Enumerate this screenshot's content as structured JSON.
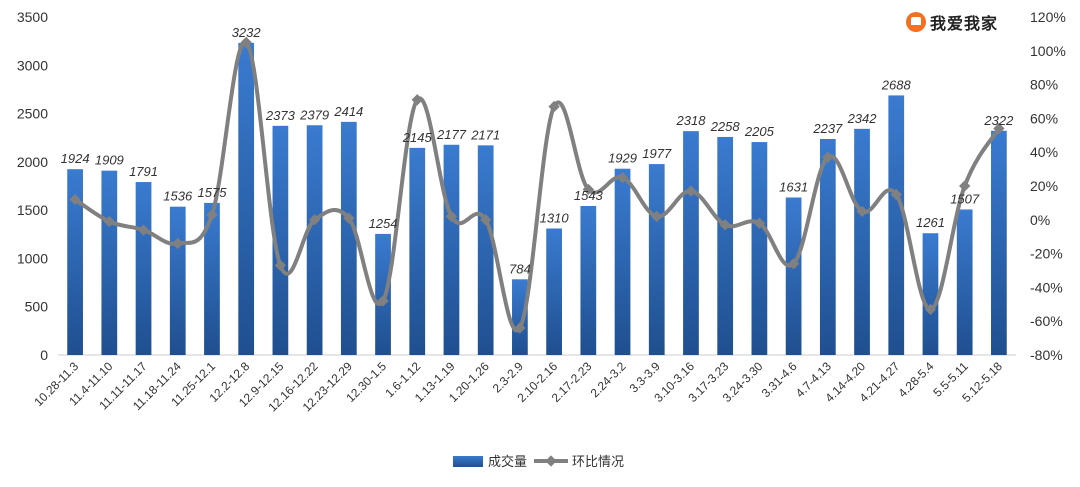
{
  "brand": {
    "name": "我爱我家",
    "icon": "house-logo-icon",
    "color": "#f36f21"
  },
  "chart_data": {
    "type": "bar",
    "categories": [
      "10.28-11.3",
      "11.4-11.10",
      "11.11-11.17",
      "11.18-11.24",
      "11.25-12.1",
      "12.2-12.8",
      "12.9-12.15",
      "12.16-12.22",
      "12.23-12.29",
      "12.30-1.5",
      "1.6-1.12",
      "1.13-1.19",
      "1.20-1.26",
      "2.3-2.9",
      "2.10-2.16",
      "2.17-2.23",
      "2.24-3.2",
      "3.3-3.9",
      "3.10-3.16",
      "3.17-3.23",
      "3.24-3.30",
      "3.31-4.6",
      "4.7-4.13",
      "4.14-4.20",
      "4.21-4.27",
      "4.28-5.4",
      "5.5-5.11",
      "5.12-5.18"
    ],
    "series": [
      {
        "name": "成交量",
        "type": "bar",
        "axis": "left",
        "color": "#2e6bb5",
        "values": [
          1924,
          1909,
          1791,
          1536,
          1575,
          3232,
          2373,
          2379,
          2414,
          1254,
          2145,
          2177,
          2171,
          784,
          1310,
          1543,
          1929,
          1977,
          2318,
          2258,
          2205,
          1631,
          2237,
          2342,
          2688,
          1261,
          1507,
          2322
        ]
      },
      {
        "name": "环比情况",
        "type": "line",
        "axis": "right",
        "color": "#808080",
        "values": [
          12,
          -1,
          -6,
          -14,
          3,
          105,
          -27,
          0,
          1,
          -48,
          71,
          2,
          0,
          -64,
          67,
          18,
          25,
          2,
          17,
          -3,
          -2,
          -26,
          37,
          5,
          15,
          -53,
          20,
          54
        ]
      }
    ],
    "left_axis": {
      "min": 0,
      "max": 3500,
      "step": 500,
      "ticks": [
        "0",
        "500",
        "1000",
        "1500",
        "2000",
        "2500",
        "3000",
        "3500"
      ]
    },
    "right_axis": {
      "min": -80,
      "max": 120,
      "step": 20,
      "ticks": [
        "-80%",
        "-60%",
        "-40%",
        "-20%",
        "0%",
        "20%",
        "40%",
        "60%",
        "80%",
        "100%",
        "120%"
      ]
    },
    "legend_position": "bottom",
    "grid": false
  }
}
